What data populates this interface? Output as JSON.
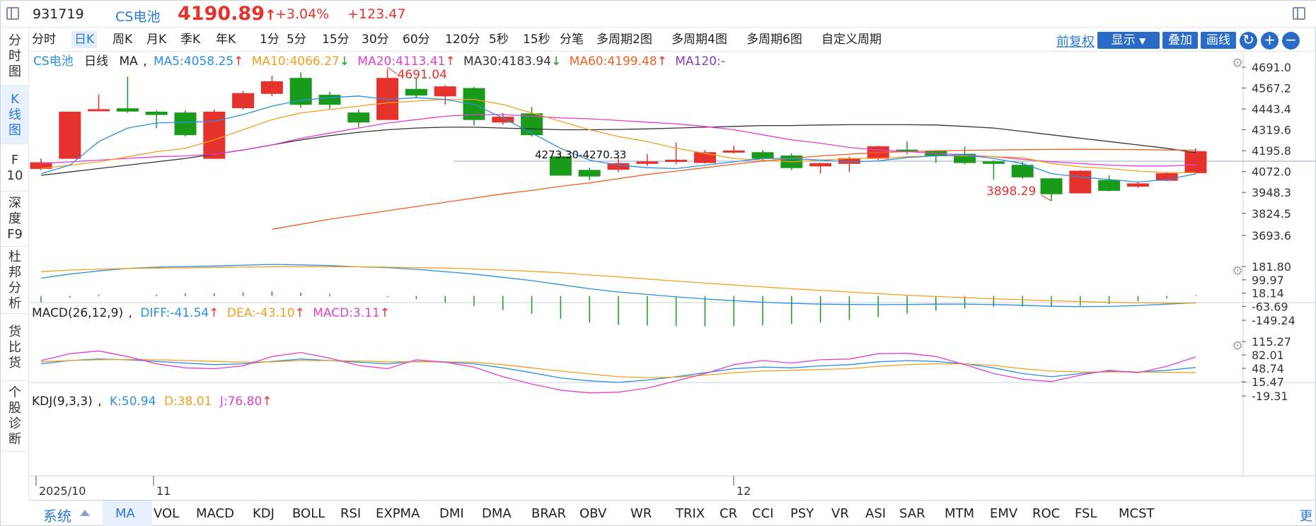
{
  "header": {
    "code": "931719",
    "name": "CS电池",
    "price": "4190.89",
    "change_pct": "+3.04%",
    "change_val": "+123.47"
  },
  "sidebar": {
    "items": [
      {
        "label": "分时图",
        "lines": [
          "分",
          "时",
          "图"
        ]
      },
      {
        "label": "K线图",
        "lines": [
          "K",
          "线",
          "图"
        ]
      },
      {
        "label": "F10",
        "lines": [
          "F",
          "10"
        ]
      },
      {
        "label": "深度F9",
        "lines": [
          "深",
          "度",
          "F9"
        ]
      },
      {
        "label": "杜邦分析",
        "lines": [
          "杜",
          "邦",
          "分",
          "析"
        ]
      },
      {
        "label": "货比货",
        "lines": [
          "货",
          "比",
          "货"
        ]
      },
      {
        "label": "个股诊断",
        "lines": [
          "个",
          "股",
          "诊",
          "断"
        ]
      }
    ],
    "active": 1
  },
  "periods": [
    "分时",
    "日K",
    "周K",
    "月K",
    "季K",
    "年K",
    "1分",
    "5分",
    "15分",
    "30分",
    "60分",
    "120分",
    "5秒",
    "15秒",
    "分笔",
    "多周期2图",
    "多周期4图",
    "多周期6图",
    "自定义周期"
  ],
  "period_active": 1,
  "toolbar": {
    "fq_label": "前复权",
    "show_label": "显示",
    "overlay_label": "叠加",
    "draw_label": "画线",
    "refresh_icon": "↻",
    "zoomin_icon": "+",
    "zoomout_icon": "−"
  },
  "main_legend": {
    "name": "CS电池",
    "cycle": "日线",
    "ind": "MA",
    "ma5": "MA5:4058.25",
    "ma10": "MA10:4066.27",
    "ma20": "MA20:4113.41",
    "ma30": "MA30:4183.94",
    "ma60": "MA60:4199.48",
    "ma120": "MA120:-",
    "arrow_up": "↑",
    "arrow_down": "↓",
    "high_label": "4691.04",
    "low_label": "3898.29",
    "mid_label": "4273.30-4270.33"
  },
  "macd_legend": {
    "title": "MACD(26,12,9)",
    "diff": "DIFF:-41.54",
    "dea": "DEA:-43.10",
    "macd": "MACD:3.11",
    "arrow_up": "↑"
  },
  "kdj_legend": {
    "title": "KDJ(9,3,3)",
    "k": "K:50.94",
    "d": "D:38.01",
    "j": "J:76.80",
    "arrow_up": "↑"
  },
  "colors": {
    "up": "#e5322d",
    "down": "#1a9a1a",
    "ma5": "#2b8ee0",
    "ma10": "#f0a020",
    "ma20": "#e040d0",
    "ma30": "#333333",
    "ma60": "#f06020",
    "ma120": "#8040c0"
  },
  "chart_data": {
    "type": "candlestick",
    "price_axis": [
      "4691.0",
      "4567.2",
      "4443.4",
      "4319.6",
      "4195.8",
      "4072.0",
      "3948.3",
      "3824.5",
      "3693.6"
    ],
    "macd_axis": [
      "181.80",
      "99.97",
      "18.14",
      "-63.69",
      "-149.24"
    ],
    "kdj_axis": [
      "115.27",
      "82.01",
      "48.74",
      "15.47",
      "-19.31"
    ],
    "x_labels": [
      {
        "label": "2025/10",
        "index": 0
      },
      {
        "label": "11",
        "index": 4
      },
      {
        "label": "12",
        "index": 24
      }
    ],
    "candles": [
      {
        "o": 4090,
        "c": 4125,
        "h": 4150,
        "l": 4080
      },
      {
        "o": 4150,
        "c": 4425,
        "h": 4425,
        "l": 4150
      },
      {
        "o": 4440,
        "c": 4440,
        "h": 4530,
        "l": 4430
      },
      {
        "o": 4445,
        "c": 4430,
        "h": 4635,
        "l": 4420
      },
      {
        "o": 4425,
        "c": 4410,
        "h": 4435,
        "l": 4330
      },
      {
        "o": 4420,
        "c": 4290,
        "h": 4435,
        "l": 4280
      },
      {
        "o": 4150,
        "c": 4425,
        "h": 4440,
        "l": 4150
      },
      {
        "o": 4450,
        "c": 4535,
        "h": 4550,
        "l": 4440
      },
      {
        "o": 4535,
        "c": 4605,
        "h": 4640,
        "l": 4520
      },
      {
        "o": 4625,
        "c": 4470,
        "h": 4660,
        "l": 4450
      },
      {
        "o": 4525,
        "c": 4470,
        "h": 4545,
        "l": 4445
      },
      {
        "o": 4420,
        "c": 4365,
        "h": 4440,
        "l": 4335
      },
      {
        "o": 4380,
        "c": 4625,
        "h": 4680,
        "l": 4380
      },
      {
        "o": 4560,
        "c": 4525,
        "h": 4625,
        "l": 4510
      },
      {
        "o": 4520,
        "c": 4575,
        "h": 4585,
        "l": 4470
      },
      {
        "o": 4565,
        "c": 4380,
        "h": 4575,
        "l": 4345
      },
      {
        "o": 4365,
        "c": 4395,
        "h": 4420,
        "l": 4350
      },
      {
        "o": 4415,
        "c": 4290,
        "h": 4455,
        "l": 4280
      },
      {
        "o": 4160,
        "c": 4050,
        "h": 4185,
        "l": 4050
      },
      {
        "o": 4080,
        "c": 4045,
        "h": 4095,
        "l": 4020
      },
      {
        "o": 4085,
        "c": 4120,
        "h": 4165,
        "l": 4070
      },
      {
        "o": 4120,
        "c": 4130,
        "h": 4175,
        "l": 4105
      },
      {
        "o": 4140,
        "c": 4140,
        "h": 4245,
        "l": 4115
      },
      {
        "o": 4125,
        "c": 4185,
        "h": 4200,
        "l": 4120
      },
      {
        "o": 4190,
        "c": 4195,
        "h": 4225,
        "l": 4180
      },
      {
        "o": 4185,
        "c": 4150,
        "h": 4200,
        "l": 4130
      },
      {
        "o": 4165,
        "c": 4095,
        "h": 4180,
        "l": 4080
      },
      {
        "o": 4105,
        "c": 4120,
        "h": 4125,
        "l": 4060
      },
      {
        "o": 4120,
        "c": 4150,
        "h": 4160,
        "l": 4070
      },
      {
        "o": 4150,
        "c": 4220,
        "h": 4225,
        "l": 4140
      },
      {
        "o": 4200,
        "c": 4195,
        "h": 4250,
        "l": 4175
      },
      {
        "o": 4195,
        "c": 4165,
        "h": 4200,
        "l": 4125
      },
      {
        "o": 4175,
        "c": 4125,
        "h": 4220,
        "l": 4115
      },
      {
        "o": 4130,
        "c": 4120,
        "h": 4140,
        "l": 4025
      },
      {
        "o": 4110,
        "c": 4040,
        "h": 4130,
        "l": 4030
      },
      {
        "o": 4030,
        "c": 3940,
        "h": 4035,
        "l": 3898
      },
      {
        "o": 3945,
        "c": 4075,
        "h": 4080,
        "l": 3945
      },
      {
        "o": 4020,
        "c": 3960,
        "h": 4050,
        "l": 3955
      },
      {
        "o": 3985,
        "c": 4000,
        "h": 4010,
        "l": 3975
      },
      {
        "o": 4020,
        "c": 4060,
        "h": 4070,
        "l": 4015
      },
      {
        "o": 4065,
        "c": 4191,
        "h": 4210,
        "l": 4060
      }
    ],
    "ma5": [
      4060,
      4110,
      4250,
      4330,
      4360,
      4365,
      4370,
      4410,
      4460,
      4495,
      4510,
      4520,
      4500,
      4510,
      4500,
      4470,
      4390,
      4300,
      4210,
      4140,
      4110,
      4095,
      4090,
      4110,
      4130,
      4150,
      4150,
      4140,
      4130,
      4135,
      4155,
      4165,
      4170,
      4150,
      4120,
      4060,
      4040,
      4025,
      4010,
      4025,
      4058
    ],
    "ma10": [
      4090,
      4110,
      4130,
      4160,
      4190,
      4210,
      4260,
      4320,
      4380,
      4420,
      4440,
      4460,
      4480,
      4490,
      4500,
      4500,
      4470,
      4420,
      4370,
      4320,
      4280,
      4250,
      4210,
      4180,
      4150,
      4140,
      4130,
      4140,
      4150,
      4150,
      4160,
      4165,
      4165,
      4160,
      4155,
      4120,
      4100,
      4090,
      4075,
      4066,
      4066
    ],
    "ma20": [
      4120,
      4130,
      4140,
      4150,
      4160,
      4165,
      4175,
      4200,
      4230,
      4270,
      4300,
      4330,
      4360,
      4380,
      4400,
      4410,
      4410,
      4400,
      4390,
      4385,
      4375,
      4365,
      4355,
      4340,
      4320,
      4290,
      4260,
      4240,
      4215,
      4200,
      4190,
      4180,
      4170,
      4160,
      4145,
      4130,
      4120,
      4110,
      4105,
      4105,
      4113
    ],
    "ma30": [
      4050,
      4070,
      4090,
      4110,
      4130,
      4150,
      4175,
      4200,
      4230,
      4260,
      4285,
      4305,
      4320,
      4330,
      4335,
      4335,
      4330,
      4325,
      4320,
      4320,
      4322,
      4325,
      4330,
      4335,
      4340,
      4345,
      4345,
      4348,
      4350,
      4350,
      4350,
      4348,
      4340,
      4330,
      4310,
      4290,
      4270,
      4250,
      4230,
      4210,
      4184
    ],
    "ma60": [
      null,
      null,
      null,
      null,
      null,
      null,
      null,
      null,
      3730,
      3760,
      3790,
      3815,
      3840,
      3865,
      3890,
      3915,
      3940,
      3960,
      3985,
      4005,
      4030,
      4055,
      4075,
      4095,
      4115,
      4135,
      4150,
      4165,
      4175,
      4185,
      4190,
      4195,
      4198,
      4200,
      4202,
      4203,
      4204,
      4203,
      4202,
      4200,
      4199
    ],
    "diff": [
      110,
      135,
      155,
      170,
      178,
      182,
      185,
      190,
      195,
      192,
      188,
      180,
      175,
      165,
      150,
      135,
      115,
      95,
      70,
      45,
      25,
      10,
      -5,
      -18,
      -28,
      -38,
      -45,
      -50,
      -52,
      -53,
      -52,
      -50,
      -50,
      -52,
      -57,
      -63,
      -65,
      -64,
      -58,
      -50,
      -41
    ],
    "dea": [
      150,
      160,
      165,
      170,
      172,
      174,
      176,
      178,
      180,
      181,
      181,
      180,
      178,
      175,
      172,
      167,
      160,
      152,
      143,
      130,
      118,
      105,
      92,
      80,
      68,
      56,
      45,
      35,
      25,
      15,
      5,
      -3,
      -10,
      -17,
      -23,
      -29,
      -34,
      -38,
      -41,
      -43,
      -43
    ],
    "macd_bars": [
      -40,
      -10,
      8,
      0,
      10,
      17,
      18,
      24,
      30,
      22,
      14,
      0,
      -6,
      -20,
      -44,
      -64,
      -90,
      -114,
      -146,
      -170,
      -186,
      -190,
      -194,
      -196,
      -192,
      -188,
      -180,
      -170,
      -154,
      -136,
      -114,
      -94,
      -80,
      -70,
      -68,
      -68,
      -62,
      -52,
      -34,
      -14,
      6
    ],
    "k": [
      60,
      68,
      72,
      70,
      66,
      62,
      58,
      60,
      66,
      72,
      68,
      64,
      60,
      66,
      64,
      60,
      50,
      38,
      25,
      18,
      14,
      20,
      28,
      38,
      48,
      52,
      50,
      55,
      58,
      65,
      68,
      66,
      60,
      50,
      36,
      28,
      36,
      42,
      40,
      44,
      51
    ],
    "d": [
      65,
      68,
      70,
      71,
      70,
      68,
      66,
      64,
      65,
      68,
      68,
      67,
      65,
      65,
      65,
      64,
      58,
      50,
      42,
      35,
      28,
      26,
      27,
      32,
      38,
      42,
      44,
      46,
      48,
      54,
      58,
      60,
      60,
      56,
      48,
      42,
      40,
      40,
      40,
      39,
      38
    ],
    "j": [
      68,
      85,
      92,
      78,
      60,
      50,
      48,
      55,
      78,
      88,
      74,
      56,
      48,
      70,
      64,
      52,
      28,
      10,
      -5,
      -12,
      -10,
      0,
      18,
      36,
      58,
      68,
      62,
      70,
      72,
      85,
      86,
      78,
      58,
      36,
      22,
      16,
      32,
      44,
      38,
      54,
      77
    ]
  },
  "bottom": {
    "sys_label": "系统",
    "indicators": [
      "MA",
      "VOL",
      "MACD",
      "KDJ",
      "BOLL",
      "RSI",
      "EXPMA",
      "DMI",
      "DMA",
      "BRAR",
      "OBV",
      "WR",
      "TRIX",
      "CR",
      "CCI",
      "PSY",
      "VR",
      "ASI",
      "SAR",
      "MTM",
      "EMV",
      "ROC",
      "FSL",
      "MCST"
    ],
    "active": 0,
    "more_label": "更多"
  }
}
